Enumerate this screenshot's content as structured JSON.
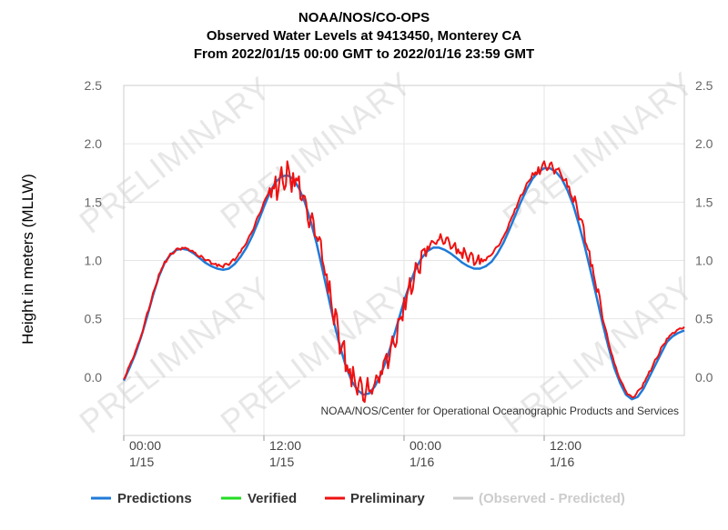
{
  "chart_data": {
    "type": "line",
    "title_lines": [
      "NOAA/NOS/CO-OPS",
      "Observed Water Levels at 9413450, Monterey CA",
      "From 2022/01/15 00:00 GMT to 2022/01/16 23:59 GMT"
    ],
    "ylabel": "Height in meters (MLLW)",
    "ylim": [
      -0.5,
      2.5
    ],
    "yticks": [
      "2.5",
      "2.0",
      "1.5",
      "1.0",
      "0.5",
      "0.0"
    ],
    "ytick_values": [
      2.5,
      2.0,
      1.5,
      1.0,
      0.5,
      0.0
    ],
    "xlim_hours": [
      0,
      48
    ],
    "xticks": [
      {
        "hour": 0,
        "time": "00:00",
        "date": "1/15"
      },
      {
        "hour": 12,
        "time": "12:00",
        "date": "1/15"
      },
      {
        "hour": 24,
        "time": "00:00",
        "date": "1/16"
      },
      {
        "hour": 36,
        "time": "12:00",
        "date": "1/16"
      }
    ],
    "grid": true,
    "watermark": "PRELIMINARY",
    "credit": "NOAA/NOS/Center for Operational Oceanographic Products and Services",
    "legend_position": "bottom",
    "series": [
      {
        "name": "Predictions",
        "color": "#1f7ad8",
        "x": [
          0,
          0.5,
          1,
          1.5,
          2,
          2.5,
          3,
          3.5,
          4,
          4.5,
          5,
          5.5,
          6,
          6.5,
          7,
          7.5,
          8,
          8.5,
          9,
          9.5,
          10,
          10.5,
          11,
          11.5,
          12,
          12.5,
          13,
          13.5,
          14,
          14.5,
          15,
          15.5,
          16,
          16.5,
          17,
          17.5,
          18,
          18.5,
          19,
          19.5,
          20,
          20.5,
          21,
          21.5,
          22,
          22.5,
          23,
          23.5,
          24,
          24.5,
          25,
          25.5,
          26,
          26.5,
          27,
          27.5,
          28,
          28.5,
          29,
          29.5,
          30,
          30.5,
          31,
          31.5,
          32,
          32.5,
          33,
          33.5,
          34,
          34.5,
          35,
          35.5,
          36,
          36.5,
          37,
          37.5,
          38,
          38.5,
          39,
          39.5,
          40,
          40.5,
          41,
          41.5,
          42,
          42.5,
          43,
          43.5,
          44,
          44.5,
          45,
          45.5,
          46,
          46.5,
          47,
          47.5,
          48
        ],
        "values": [
          -0.03,
          0.08,
          0.2,
          0.35,
          0.52,
          0.7,
          0.86,
          0.98,
          1.05,
          1.09,
          1.1,
          1.09,
          1.06,
          1.02,
          0.98,
          0.95,
          0.93,
          0.92,
          0.93,
          0.97,
          1.03,
          1.11,
          1.21,
          1.33,
          1.46,
          1.58,
          1.67,
          1.72,
          1.73,
          1.7,
          1.62,
          1.5,
          1.34,
          1.15,
          0.93,
          0.7,
          0.47,
          0.27,
          0.1,
          -0.03,
          -0.11,
          -0.15,
          -0.14,
          -0.08,
          0.02,
          0.15,
          0.31,
          0.48,
          0.65,
          0.8,
          0.93,
          1.02,
          1.08,
          1.11,
          1.11,
          1.09,
          1.06,
          1.02,
          0.98,
          0.95,
          0.93,
          0.93,
          0.95,
          0.99,
          1.06,
          1.15,
          1.26,
          1.38,
          1.5,
          1.61,
          1.7,
          1.76,
          1.79,
          1.79,
          1.76,
          1.7,
          1.6,
          1.47,
          1.3,
          1.11,
          0.9,
          0.68,
          0.46,
          0.26,
          0.08,
          -0.05,
          -0.15,
          -0.19,
          -0.17,
          -0.1,
          0.0,
          0.1,
          0.2,
          0.3,
          0.35,
          0.38,
          0.4
        ]
      },
      {
        "name": "Verified",
        "color": "#22dd22",
        "x": [],
        "values": []
      },
      {
        "name": "Preliminary",
        "color": "#ee1111",
        "x": [
          0,
          0.5,
          1,
          1.5,
          2,
          2.5,
          3,
          3.5,
          4,
          4.5,
          5,
          5.5,
          6,
          6.5,
          7,
          7.5,
          8,
          8.5,
          9,
          9.5,
          10,
          10.5,
          11,
          11.5,
          12,
          12.5,
          13,
          13.5,
          14,
          14.5,
          15,
          15.5,
          16,
          16.5,
          17,
          17.5,
          18,
          18.5,
          19,
          19.5,
          20,
          20.5,
          21,
          21.5,
          22,
          22.5,
          23,
          23.5,
          24,
          24.5,
          25,
          25.5,
          26,
          26.5,
          27,
          27.5,
          28,
          28.5,
          29,
          29.5,
          30,
          30.5,
          31,
          31.5,
          32,
          32.5,
          33,
          33.5,
          34,
          34.5,
          35,
          35.5,
          36,
          36.5,
          37,
          37.5,
          38,
          38.5,
          39,
          39.5,
          40,
          40.5,
          41,
          41.5,
          42,
          42.5,
          43,
          43.5,
          44,
          44.5,
          45,
          45.5,
          46,
          46.5,
          47,
          47.5,
          48
        ],
        "values": [
          -0.02,
          0.1,
          0.22,
          0.36,
          0.55,
          0.72,
          0.88,
          0.99,
          1.06,
          1.1,
          1.11,
          1.1,
          1.07,
          1.03,
          1.0,
          0.97,
          0.95,
          0.94,
          0.96,
          1.0,
          1.07,
          1.15,
          1.25,
          1.38,
          1.5,
          1.62,
          1.72,
          1.8,
          1.85,
          1.75,
          1.72,
          1.55,
          1.35,
          1.2,
          1.0,
          0.72,
          0.45,
          0.2,
          0.05,
          -0.08,
          -0.15,
          -0.2,
          -0.12,
          -0.05,
          0.05,
          0.2,
          0.35,
          0.5,
          0.68,
          0.85,
          0.98,
          1.08,
          1.12,
          1.16,
          1.18,
          1.15,
          1.1,
          1.06,
          1.02,
          0.99,
          0.96,
          0.97,
          1.0,
          1.05,
          1.12,
          1.2,
          1.32,
          1.44,
          1.56,
          1.66,
          1.75,
          1.8,
          1.85,
          1.83,
          1.78,
          1.72,
          1.63,
          1.5,
          1.35,
          1.16,
          0.95,
          0.73,
          0.5,
          0.3,
          0.12,
          -0.02,
          -0.12,
          -0.17,
          -0.12,
          -0.05,
          0.05,
          0.15,
          0.25,
          0.33,
          0.38,
          0.41,
          0.43
        ]
      },
      {
        "name": "(Observed - Predicted)",
        "color": "#cccccc",
        "x": [],
        "values": []
      }
    ]
  }
}
